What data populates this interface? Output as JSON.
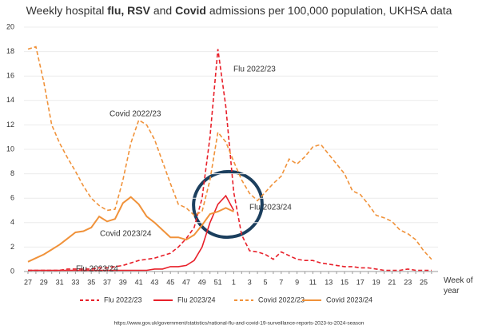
{
  "chart_data": {
    "type": "line",
    "title_parts": [
      {
        "text": "Weekly hospital ",
        "bold": false
      },
      {
        "text": "flu,",
        "bold": true
      },
      {
        "text": " RSV",
        "bold": true
      },
      {
        "text": " and ",
        "bold": false
      },
      {
        "text": "Covid",
        "bold": true
      },
      {
        "text": " admissions per 100,000 population, UKHSA data",
        "bold": false
      }
    ],
    "xlabel": "Week of year",
    "source": "https://www.gov.uk/government/statistics/national-flu-and-covid-19-surveillance-reports-2023-to-2024-season",
    "categories": [
      "27",
      null,
      "29",
      null,
      "31",
      null,
      "33",
      null,
      "35",
      null,
      "37",
      null,
      "39",
      null,
      "41",
      null,
      "43",
      null,
      "45",
      null,
      "47",
      null,
      "49",
      null,
      "51",
      null,
      "1",
      null,
      "3",
      null,
      "5",
      null,
      "7",
      null,
      "9",
      null,
      "11",
      null,
      "13",
      null,
      "15",
      null,
      "17",
      null,
      "19",
      null,
      "21",
      null,
      "23",
      null,
      "25",
      null
    ],
    "ylim": [
      0,
      20
    ],
    "yticks": [
      0,
      2,
      4,
      6,
      8,
      10,
      12,
      14,
      16,
      18,
      20
    ],
    "grid": true,
    "legend": "bottom",
    "series": [
      {
        "name": "Flu 2022/23",
        "color": "#e8202a",
        "dash": true,
        "width": 1.6,
        "values": [
          0.1,
          0.1,
          0.1,
          0.1,
          0.1,
          0.2,
          0.2,
          0.2,
          0.2,
          0.3,
          0.3,
          0.4,
          0.5,
          0.7,
          0.9,
          1.0,
          1.1,
          1.3,
          1.5,
          2.0,
          2.7,
          3.6,
          6.0,
          11.0,
          18.2,
          13.5,
          6.5,
          3.0,
          1.7,
          1.6,
          1.4,
          1.0,
          1.6,
          1.3,
          1.0,
          0.9,
          0.9,
          0.7,
          0.6,
          0.5,
          0.4,
          0.4,
          0.3,
          0.3,
          0.2,
          0.1,
          0.1,
          0.1,
          0.2,
          0.1,
          0.1,
          0.1
        ]
      },
      {
        "name": "Flu 2023/24",
        "color": "#e8202a",
        "dash": false,
        "width": 1.6,
        "values": [
          0.1,
          0.1,
          0.1,
          0.1,
          0.1,
          0.1,
          0.1,
          0.1,
          0.1,
          0.1,
          0.1,
          0.1,
          0.1,
          0.1,
          0.1,
          0.1,
          0.2,
          0.2,
          0.4,
          0.4,
          0.5,
          0.9,
          2.0,
          4.0,
          5.5,
          6.2,
          5.0,
          null,
          null,
          null,
          null,
          null,
          null,
          null,
          null,
          null,
          null,
          null,
          null,
          null,
          null,
          null,
          null,
          null,
          null,
          null,
          null,
          null,
          null,
          null,
          null,
          null
        ]
      },
      {
        "name": "Covid 2022/23",
        "color": "#f0923a",
        "dash": true,
        "width": 1.6,
        "values": [
          18.2,
          18.4,
          15.5,
          12.0,
          10.5,
          9.3,
          8.2,
          7.0,
          6.0,
          5.4,
          5.0,
          5.1,
          7.5,
          10.5,
          12.4,
          12.0,
          10.8,
          9.0,
          7.2,
          5.5,
          5.2,
          4.6,
          4.9,
          7.5,
          11.4,
          10.6,
          9.0,
          7.5,
          6.4,
          5.8,
          6.5,
          7.2,
          7.8,
          9.2,
          8.8,
          9.4,
          10.2,
          10.4,
          9.6,
          8.8,
          8.0,
          6.6,
          6.3,
          5.5,
          4.6,
          4.4,
          4.1,
          3.4,
          3.1,
          2.6,
          1.7,
          1.0
        ]
      },
      {
        "name": "Covid 2023/24",
        "color": "#f0923a",
        "dash": false,
        "width": 2,
        "values": [
          0.8,
          1.1,
          1.4,
          1.8,
          2.2,
          2.7,
          3.2,
          3.3,
          3.6,
          4.5,
          4.1,
          4.3,
          5.6,
          6.1,
          5.5,
          4.5,
          4.0,
          3.4,
          2.8,
          2.8,
          2.6,
          3.0,
          3.8,
          4.7,
          4.9,
          5.2,
          4.9,
          null,
          null,
          null,
          null,
          null,
          null,
          null,
          null,
          null,
          null,
          null,
          null,
          null,
          null,
          null,
          null,
          null,
          null,
          null,
          null,
          null,
          null,
          null,
          null,
          null
        ]
      }
    ],
    "annotations": [
      {
        "text": "Flu 2022/23",
        "color": "#e8202a"
      },
      {
        "text": "Covid 2022/23",
        "color": "#d9822b"
      },
      {
        "text": "Covid 2023/24",
        "color": "#d9822b"
      },
      {
        "text": "Flu 2023/24",
        "color": "#e8202a"
      },
      {
        "text": "Flu 2023/24",
        "color": "#333333"
      }
    ]
  }
}
